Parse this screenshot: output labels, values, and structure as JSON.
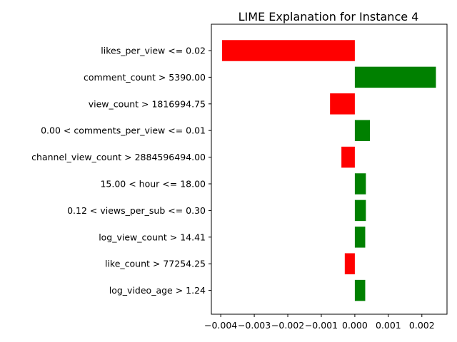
{
  "chart_data": {
    "type": "bar",
    "orientation": "horizontal",
    "title": "LIME Explanation for Instance 4",
    "xlabel": "",
    "ylabel": "",
    "categories": [
      "likes_per_view <= 0.02",
      "comment_count > 5390.00",
      "view_count > 1816994.75",
      "0.00 < comments_per_view <= 0.01",
      "channel_view_count > 2884596494.00",
      "15.00 < hour <= 18.00",
      "0.12 < views_per_sub <= 0.30",
      "log_view_count > 14.41",
      "like_count > 77254.25",
      "log_video_age > 1.24"
    ],
    "values": [
      -0.00396,
      0.00242,
      -0.00074,
      0.00045,
      -0.0004,
      0.00033,
      0.00033,
      0.00031,
      -0.0003,
      0.00031
    ],
    "xlim": [
      -0.00428,
      0.00275
    ],
    "xticks": [
      -0.004,
      -0.003,
      -0.002,
      -0.001,
      0.0,
      0.001,
      0.002
    ],
    "xtick_labels": [
      "−0.004",
      "−0.003",
      "−0.002",
      "−0.001",
      "0.000",
      "0.001",
      "0.002"
    ],
    "grid": false,
    "colors": {
      "positive": "#008000",
      "negative": "#ff0000"
    }
  }
}
